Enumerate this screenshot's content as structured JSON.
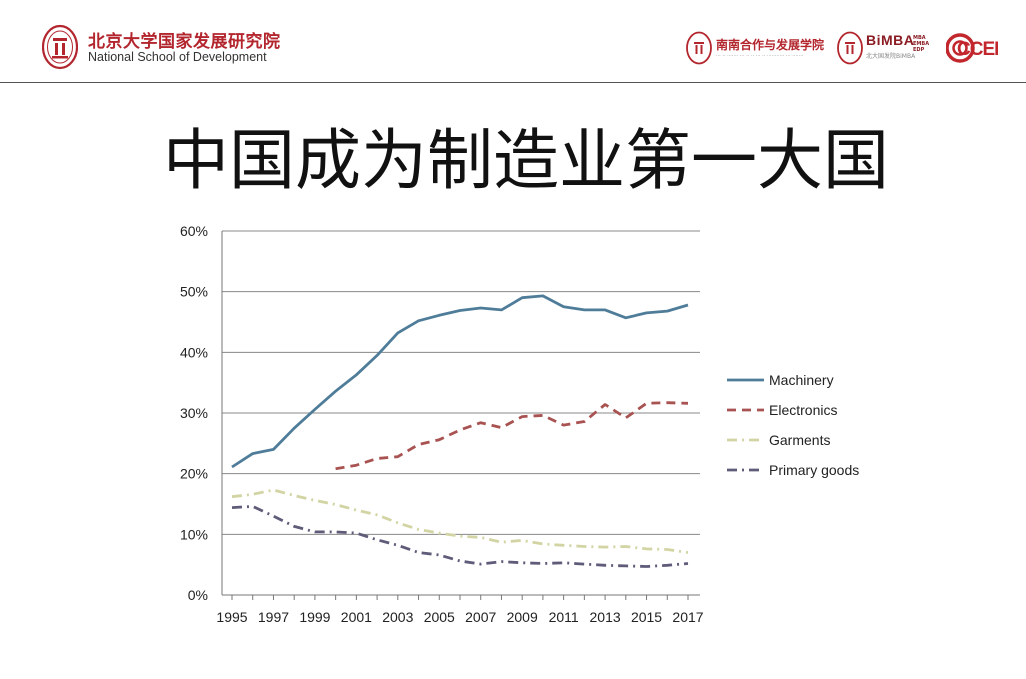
{
  "header": {
    "school_cn": "北京大学国家发展研究院",
    "school_en": "National School of Development",
    "ssc_cn": "南南合作与发展学院",
    "bimba": "BiMBA",
    "bimba_sub": "北大国发院BiMBA",
    "bimba_tags": [
      "MBA",
      "EMBA",
      "EDP"
    ],
    "ccer": "CCER",
    "colors": {
      "brand_red": "#b3262e",
      "dark_red": "#8a1c24"
    }
  },
  "slide": {
    "title": "中国成为制造业第一大国"
  },
  "chart_data": {
    "type": "line",
    "title": "",
    "xlabel": "",
    "ylabel": "",
    "ylim": [
      0,
      60
    ],
    "yticks": [
      "0%",
      "10%",
      "20%",
      "30%",
      "40%",
      "50%",
      "60%"
    ],
    "xticks": [
      "1995",
      "1997",
      "1999",
      "2001",
      "2003",
      "2005",
      "2007",
      "2009",
      "2011",
      "2013",
      "2015",
      "2017"
    ],
    "x": [
      1995,
      1996,
      1997,
      1998,
      1999,
      2000,
      2001,
      2002,
      2003,
      2004,
      2005,
      2006,
      2007,
      2008,
      2009,
      2010,
      2011,
      2012,
      2013,
      2014,
      2015,
      2016,
      2017
    ],
    "grid": true,
    "legend": "right",
    "series": [
      {
        "name": "Machinery",
        "style": "solid",
        "color": "#4f7d99",
        "values": [
          21.1,
          23.3,
          24.0,
          27.5,
          30.6,
          33.6,
          36.3,
          39.5,
          43.2,
          45.2,
          46.1,
          46.9,
          47.3,
          47.0,
          49.0,
          49.3,
          47.5,
          47.0,
          47.0,
          45.7,
          46.5,
          46.8,
          47.8
        ]
      },
      {
        "name": "Electronics",
        "style": "dashed",
        "color": "#a85351",
        "values": [
          null,
          null,
          null,
          null,
          null,
          20.8,
          21.4,
          22.5,
          22.8,
          24.8,
          25.6,
          27.2,
          28.4,
          27.6,
          29.4,
          29.6,
          28.0,
          28.6,
          31.4,
          29.2,
          31.6,
          31.7,
          31.6
        ]
      },
      {
        "name": "Garments",
        "style": "dash-dot",
        "color": "#d2d5a3",
        "values": [
          16.2,
          16.6,
          17.3,
          16.4,
          15.6,
          14.9,
          14.0,
          13.2,
          11.9,
          10.8,
          10.2,
          9.7,
          9.5,
          8.7,
          9.0,
          8.4,
          8.2,
          8.0,
          7.9,
          8.0,
          7.6,
          7.5,
          7.0
        ]
      },
      {
        "name": "Primary goods",
        "style": "dash-dot",
        "color": "#5e5c79",
        "values": [
          14.4,
          14.6,
          13.0,
          11.3,
          10.4,
          10.4,
          10.2,
          9.1,
          8.2,
          7.0,
          6.6,
          5.6,
          5.1,
          5.5,
          5.3,
          5.2,
          5.3,
          5.1,
          4.9,
          4.8,
          4.7,
          4.9,
          5.2
        ]
      }
    ]
  }
}
